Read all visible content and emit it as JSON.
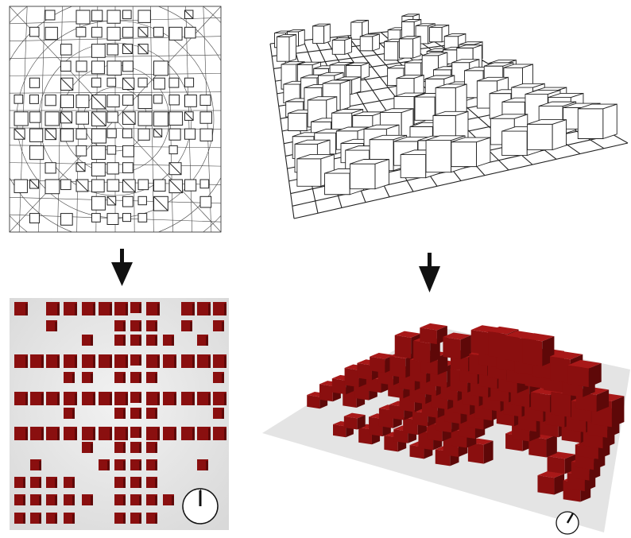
{
  "figure": {
    "panels": [
      {
        "id": "plan-wireframe",
        "kind": "wireframe-plan",
        "style": "line drawing"
      },
      {
        "id": "perspective-wireframe",
        "kind": "wireframe-perspective",
        "style": "line drawing"
      },
      {
        "id": "plan-render",
        "kind": "rendered-plan",
        "style": "shaded"
      },
      {
        "id": "perspective-render",
        "kind": "rendered-perspective",
        "style": "shaded"
      }
    ],
    "arrows": [
      {
        "id": "arrow-left",
        "from": "plan-wireframe",
        "to": "plan-render"
      },
      {
        "id": "arrow-right",
        "from": "perspective-wireframe",
        "to": "perspective-render"
      }
    ],
    "colors": {
      "line": "#222222",
      "cube_front": "#8a0f0f",
      "cube_top": "#a81818",
      "cube_side": "#5e0808",
      "ground": "#e6e6e6",
      "arrow": "#111111"
    },
    "sun_indicators": [
      {
        "panel": "plan-render",
        "icon": "sun-direction-dial-icon"
      },
      {
        "panel": "perspective-render",
        "icon": "sun-direction-dial-icon"
      }
    ]
  }
}
